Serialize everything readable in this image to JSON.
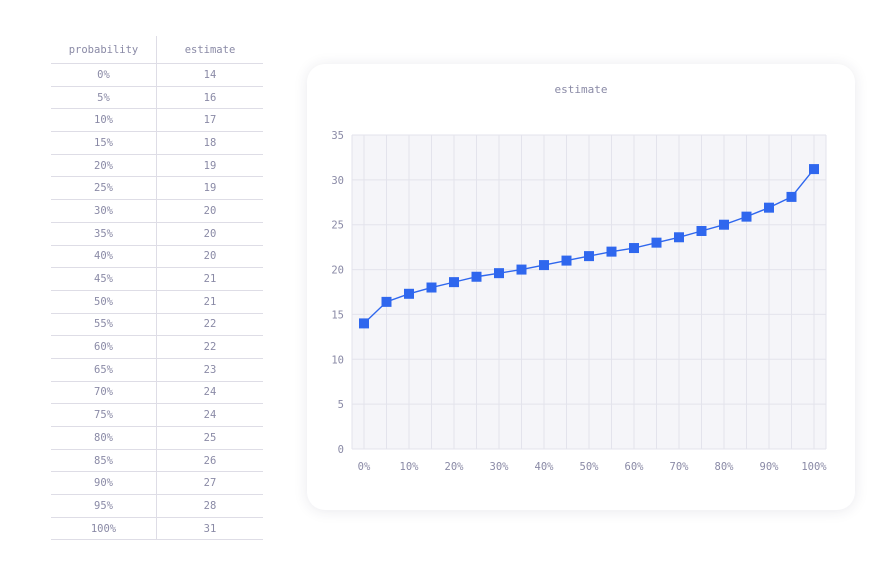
{
  "table": {
    "headers": [
      "probability",
      "estimate"
    ],
    "rows": [
      [
        "0%",
        "14"
      ],
      [
        "5%",
        "16"
      ],
      [
        "10%",
        "17"
      ],
      [
        "15%",
        "18"
      ],
      [
        "20%",
        "19"
      ],
      [
        "25%",
        "19"
      ],
      [
        "30%",
        "20"
      ],
      [
        "35%",
        "20"
      ],
      [
        "40%",
        "20"
      ],
      [
        "45%",
        "21"
      ],
      [
        "50%",
        "21"
      ],
      [
        "55%",
        "22"
      ],
      [
        "60%",
        "22"
      ],
      [
        "65%",
        "23"
      ],
      [
        "70%",
        "24"
      ],
      [
        "75%",
        "24"
      ],
      [
        "80%",
        "25"
      ],
      [
        "85%",
        "26"
      ],
      [
        "90%",
        "27"
      ],
      [
        "95%",
        "28"
      ],
      [
        "100%",
        "31"
      ]
    ]
  },
  "chart_data": {
    "type": "line",
    "title": "estimate",
    "x": [
      0,
      5,
      10,
      15,
      20,
      25,
      30,
      35,
      40,
      45,
      50,
      55,
      60,
      65,
      70,
      75,
      80,
      85,
      90,
      95,
      100
    ],
    "series": [
      {
        "values": [
          14.0,
          16.4,
          17.3,
          18.0,
          18.6,
          19.2,
          19.6,
          20.0,
          20.5,
          21.0,
          21.5,
          22.0,
          22.4,
          23.0,
          23.6,
          24.3,
          25.0,
          25.9,
          26.9,
          28.1,
          31.2
        ]
      }
    ],
    "xlim": [
      0,
      100
    ],
    "ylim": [
      0,
      35
    ],
    "x_ticks": [
      "0%",
      "10%",
      "20%",
      "30%",
      "40%",
      "50%",
      "60%",
      "70%",
      "80%",
      "90%",
      "100%"
    ],
    "y_ticks": [
      "0",
      "5",
      "10",
      "15",
      "20",
      "25",
      "30",
      "35"
    ],
    "grid": true,
    "colors": {
      "line": "#2f67ee",
      "marker": "#2f67ee",
      "plot_bg": "#f5f5f9",
      "grid": "#e3e3ec"
    },
    "marker": "square"
  }
}
